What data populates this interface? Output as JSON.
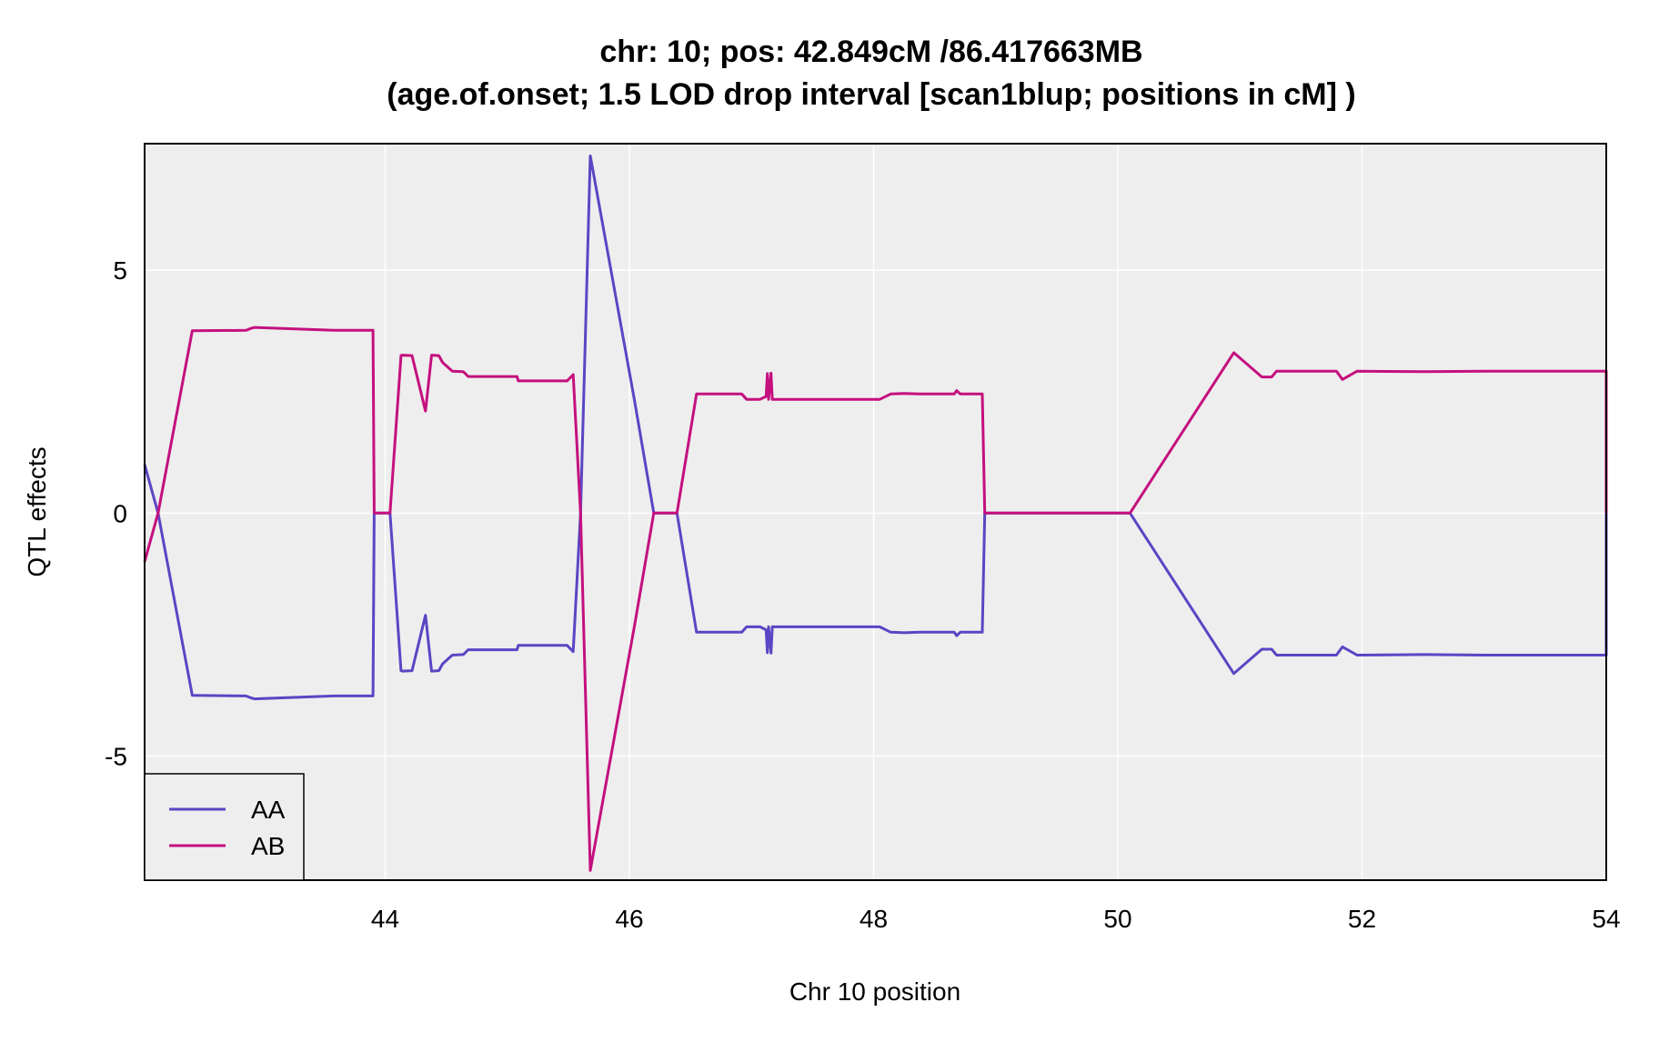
{
  "chart_data": {
    "type": "line",
    "title_line1": "chr: 10; pos: 42.849cM /86.417663MB",
    "title_line2": "(age.of.onset; 1.5 LOD drop interval [scan1blup; positions in cM] )",
    "xlabel": "Chr 10 position",
    "ylabel": "QTL effects",
    "xlim": [
      42.03,
      54.0
    ],
    "ylim": [
      -7.55,
      7.6
    ],
    "x_ticks": [
      44,
      46,
      48,
      50,
      52,
      54
    ],
    "x_tick_labels": [
      "44",
      "46",
      "48",
      "50",
      "52",
      "54"
    ],
    "y_ticks": [
      -5,
      0,
      5
    ],
    "y_tick_labels": [
      "-5",
      "0",
      "5"
    ],
    "grid": true,
    "panel_background": "#eeeeee",
    "legend_position": "bottom-left",
    "series": [
      {
        "name": "AA",
        "color": "#5b45c4",
        "x": [
          42.03,
          42.14,
          42.42,
          42.86,
          42.87,
          42.9,
          42.93,
          43.58,
          43.9,
          43.91,
          44.04,
          44.13,
          44.14,
          44.22,
          44.33,
          44.38,
          44.44,
          44.47,
          44.55,
          44.64,
          44.68,
          44.69,
          45.08,
          45.09,
          45.49,
          45.54,
          45.6,
          45.68,
          46.04,
          46.2,
          46.39,
          46.55,
          46.92,
          46.96,
          47.07,
          47.12,
          47.13,
          47.14,
          47.16,
          47.17,
          47.19,
          48.05,
          48.14,
          48.25,
          48.38,
          48.66,
          48.68,
          48.71,
          48.89,
          48.91,
          50.1,
          50.95,
          51.18,
          51.26,
          51.3,
          51.79,
          51.84,
          51.96,
          52.52,
          53.0,
          54.0,
          54.0
        ],
        "values": [
          1.0,
          0.0,
          -3.75,
          -3.76,
          -3.77,
          -3.8,
          -3.82,
          -3.76,
          -3.76,
          0.0,
          0.0,
          -3.24,
          -3.25,
          -3.24,
          -2.1,
          -3.25,
          -3.24,
          -3.1,
          -2.92,
          -2.91,
          -2.81,
          -2.81,
          -2.81,
          -2.72,
          -2.72,
          -2.85,
          0.0,
          7.35,
          2.34,
          0.0,
          0.0,
          -2.45,
          -2.45,
          -2.34,
          -2.34,
          -2.4,
          -2.87,
          -2.34,
          -2.88,
          -2.34,
          -2.34,
          -2.34,
          -2.45,
          -2.46,
          -2.45,
          -2.45,
          -2.52,
          -2.45,
          -2.45,
          0.0,
          0.0,
          -3.3,
          -2.8,
          -2.8,
          -2.92,
          -2.92,
          -2.75,
          -2.92,
          -2.91,
          -2.92,
          -2.92,
          0.0
        ]
      },
      {
        "name": "AB",
        "color": "#c4107e",
        "x": [
          42.03,
          42.14,
          42.42,
          42.86,
          42.87,
          42.9,
          42.93,
          43.58,
          43.9,
          43.91,
          44.04,
          44.13,
          44.14,
          44.22,
          44.33,
          44.38,
          44.44,
          44.47,
          44.55,
          44.64,
          44.68,
          44.69,
          45.08,
          45.09,
          45.49,
          45.54,
          45.6,
          45.68,
          46.04,
          46.2,
          46.39,
          46.55,
          46.92,
          46.96,
          47.07,
          47.12,
          47.13,
          47.14,
          47.16,
          47.17,
          47.19,
          48.05,
          48.14,
          48.25,
          48.38,
          48.66,
          48.68,
          48.71,
          48.89,
          48.91,
          50.1,
          50.95,
          51.18,
          51.26,
          51.3,
          51.79,
          51.84,
          51.96,
          52.52,
          53.0,
          54.0,
          54.0
        ],
        "values": [
          -1.0,
          0.0,
          3.75,
          3.76,
          3.77,
          3.8,
          3.82,
          3.76,
          3.76,
          0.0,
          0.0,
          3.24,
          3.25,
          3.24,
          2.1,
          3.25,
          3.24,
          3.1,
          2.92,
          2.91,
          2.81,
          2.81,
          2.81,
          2.72,
          2.72,
          2.85,
          0.0,
          -7.35,
          -2.34,
          0.0,
          0.0,
          2.45,
          2.45,
          2.34,
          2.34,
          2.4,
          2.87,
          2.34,
          2.88,
          2.34,
          2.34,
          2.34,
          2.45,
          2.46,
          2.45,
          2.45,
          2.52,
          2.45,
          2.45,
          0.0,
          0.0,
          3.3,
          2.8,
          2.8,
          2.92,
          2.92,
          2.75,
          2.92,
          2.91,
          2.92,
          2.92,
          0.0
        ]
      }
    ]
  }
}
